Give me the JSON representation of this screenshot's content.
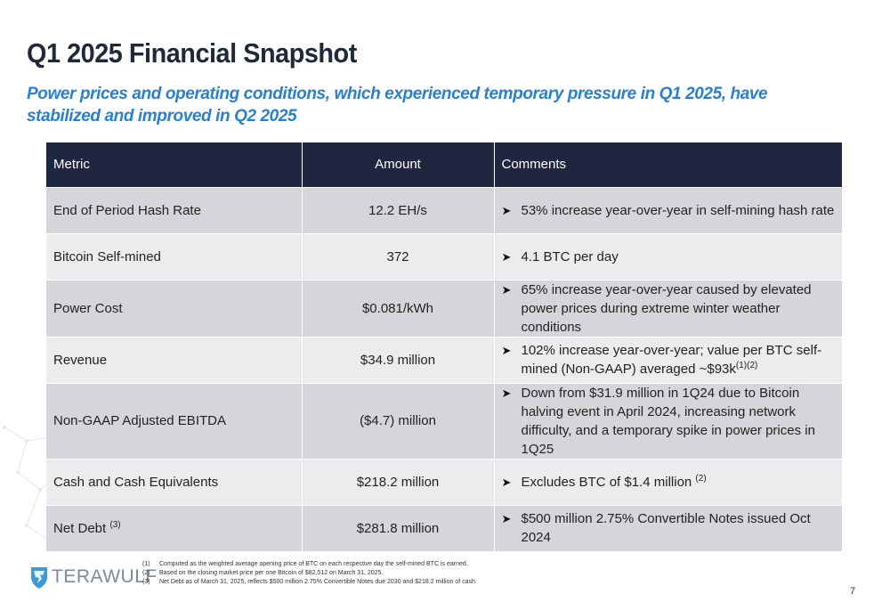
{
  "header": {
    "title": "Q1 2025 Financial Snapshot",
    "subtitle": "Power prices and operating conditions, which experienced temporary pressure in Q1 2025, have stabilized and improved in Q2 2025"
  },
  "table": {
    "columns": [
      "Metric",
      "Amount",
      "Comments"
    ],
    "rows": [
      {
        "metric": "End of Period Hash Rate",
        "amount": "12.2 EH/s",
        "comment": "53% increase year-over-year in self-mining hash rate"
      },
      {
        "metric": "Bitcoin Self-mined",
        "amount": "372",
        "comment": "4.1 BTC per day"
      },
      {
        "metric": "Power Cost",
        "amount": "$0.081/kWh",
        "comment": "65% increase year-over-year caused by elevated power prices during extreme winter weather conditions"
      },
      {
        "metric": "Revenue",
        "amount": "$34.9 million",
        "comment": "102% increase year-over-year; value per BTC self-mined (Non-GAAP) averaged ~$93k",
        "comment_sup": "(1)(2)"
      },
      {
        "metric": "Non-GAAP Adjusted EBITDA",
        "amount": "($4.7) million",
        "comment": "Down from $31.9 million in 1Q24 due to Bitcoin halving event in April 2024, increasing network difficulty, and a temporary spike in power prices in 1Q25"
      },
      {
        "metric": "Cash and Cash Equivalents",
        "amount": "$218.2 million",
        "comment": "Excludes BTC of $1.4 million",
        "comment_sup": "(2)"
      },
      {
        "metric": "Net Debt",
        "metric_sup": "(3)",
        "amount": "$281.8 million",
        "comment": "$500 million 2.75% Convertible Notes issued Oct 2024"
      }
    ]
  },
  "footnotes": [
    {
      "num": "(1)",
      "text": "Computed as the weighted average opening price of BTC on each respective day the self-mined BTC is earned."
    },
    {
      "num": "(2)",
      "text": "Based on the closing market price per one Bitcoin of $82,512 on March 31, 2025."
    },
    {
      "num": "(3)",
      "text": "Net Debt as of March 31, 2025, reflects $500 million 2.75% Convertible Notes due 2030 and $218.2 million of cash."
    }
  ],
  "logo": {
    "text": "TERAWULF",
    "icon": "wolf-shield-icon"
  },
  "page_number": "7",
  "colors": {
    "header_bg": "#1e2640",
    "accent_blue": "#2a7fd0",
    "row_dark": "#d5d6d9",
    "row_light": "#ebecee"
  }
}
